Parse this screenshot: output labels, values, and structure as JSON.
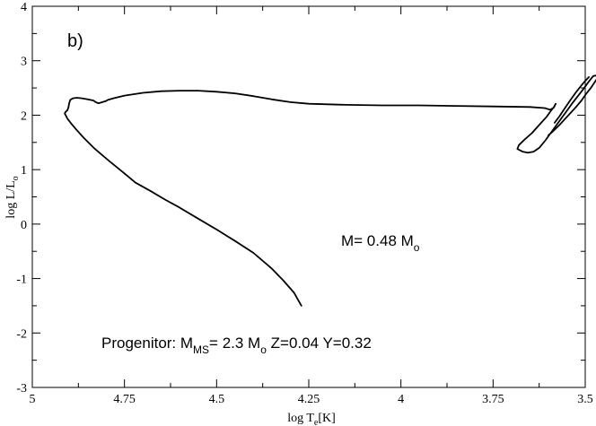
{
  "chart_data": {
    "type": "line",
    "panel_label": "b)",
    "xlabel": {
      "main": "log T",
      "sub": "e",
      "tail": "[K]"
    },
    "ylabel": {
      "main": "log L/L",
      "sub": "o"
    },
    "xlim": [
      5,
      3.5
    ],
    "ylim": [
      -3,
      4
    ],
    "x_ticks": [
      5,
      4.75,
      4.5,
      4.25,
      4,
      3.75,
      3.5
    ],
    "x_tick_labels": [
      "5",
      "4.75",
      "4.5",
      "4.25",
      "4",
      "3.75",
      "3.5"
    ],
    "y_ticks": [
      -3,
      -2,
      -1,
      0,
      1,
      2,
      3,
      4
    ],
    "y_tick_labels": [
      "-3",
      "-2",
      "-1",
      "0",
      "1",
      "2",
      "3",
      "4"
    ],
    "grid": false,
    "annotations": {
      "mass": {
        "main": "M= 0.48 M",
        "sub": "o"
      },
      "progenitor": {
        "part1": "Progenitor: M",
        "sub1": "MS",
        "part2": "= 2.3 M",
        "sub2": "o",
        "part3": " Z=0.04 Y=0.32"
      }
    },
    "series": [
      {
        "values": [
          [
            3.6,
            1.63
          ],
          [
            3.585,
            1.72
          ],
          [
            3.57,
            1.82
          ],
          [
            3.555,
            1.93
          ],
          [
            3.54,
            2.04
          ],
          [
            3.525,
            2.15
          ],
          [
            3.51,
            2.27
          ],
          [
            3.5,
            2.37
          ],
          [
            3.485,
            2.5
          ],
          [
            3.475,
            2.6
          ],
          [
            3.467,
            2.68
          ],
          [
            3.47,
            2.73
          ],
          [
            3.478,
            2.72
          ],
          [
            3.49,
            2.62
          ],
          [
            3.505,
            2.48
          ],
          [
            3.52,
            2.35
          ],
          [
            3.535,
            2.22
          ],
          [
            3.55,
            2.08
          ],
          [
            3.565,
            1.94
          ],
          [
            3.58,
            1.8
          ],
          [
            3.595,
            1.66
          ],
          [
            3.61,
            1.52
          ],
          [
            3.625,
            1.4
          ],
          [
            3.64,
            1.33
          ],
          [
            3.655,
            1.31
          ],
          [
            3.67,
            1.33
          ],
          [
            3.684,
            1.38
          ],
          [
            3.68,
            1.45
          ],
          [
            3.665,
            1.55
          ],
          [
            3.645,
            1.67
          ],
          [
            3.625,
            1.82
          ],
          [
            3.605,
            1.97
          ],
          [
            3.592,
            2.09
          ],
          [
            3.585,
            2.15
          ],
          [
            3.58,
            2.21
          ],
          [
            3.585,
            2.14
          ],
          [
            3.595,
            2.1
          ],
          [
            3.61,
            2.13
          ],
          [
            3.65,
            2.15
          ],
          [
            3.75,
            2.16
          ],
          [
            3.85,
            2.17
          ],
          [
            3.95,
            2.18
          ],
          [
            4.05,
            2.18
          ],
          [
            4.15,
            2.19
          ],
          [
            4.25,
            2.21
          ],
          [
            4.3,
            2.24
          ],
          [
            4.35,
            2.29
          ],
          [
            4.4,
            2.35
          ],
          [
            4.45,
            2.4
          ],
          [
            4.5,
            2.43
          ],
          [
            4.55,
            2.45
          ],
          [
            4.6,
            2.45
          ],
          [
            4.65,
            2.44
          ],
          [
            4.7,
            2.41
          ],
          [
            4.75,
            2.36
          ],
          [
            4.78,
            2.31
          ],
          [
            4.795,
            2.28
          ],
          [
            4.8,
            2.26
          ],
          [
            4.81,
            2.24
          ],
          [
            4.815,
            2.23
          ],
          [
            4.82,
            2.22
          ],
          [
            4.825,
            2.23
          ],
          [
            4.83,
            2.25
          ],
          [
            4.835,
            2.27
          ],
          [
            4.85,
            2.29
          ],
          [
            4.865,
            2.31
          ],
          [
            4.88,
            2.32
          ],
          [
            4.89,
            2.31
          ],
          [
            4.897,
            2.28
          ],
          [
            4.9,
            2.22
          ],
          [
            4.902,
            2.14
          ],
          [
            4.905,
            2.09
          ],
          [
            4.91,
            2.06
          ],
          [
            4.912,
            2.03
          ],
          [
            4.908,
            1.98
          ],
          [
            4.905,
            1.94
          ],
          [
            4.895,
            1.85
          ],
          [
            4.88,
            1.73
          ],
          [
            4.86,
            1.58
          ],
          [
            4.83,
            1.38
          ],
          [
            4.79,
            1.15
          ],
          [
            4.75,
            0.93
          ],
          [
            4.72,
            0.76
          ],
          [
            4.68,
            0.61
          ],
          [
            4.64,
            0.45
          ],
          [
            4.6,
            0.3
          ],
          [
            4.55,
            0.1
          ],
          [
            4.5,
            -0.1
          ],
          [
            4.45,
            -0.31
          ],
          [
            4.4,
            -0.53
          ],
          [
            4.35,
            -0.82
          ],
          [
            4.32,
            -1.03
          ],
          [
            4.29,
            -1.26
          ],
          [
            4.27,
            -1.5
          ]
        ]
      },
      {
        "values": [
          [
            3.583,
            1.86
          ],
          [
            3.57,
            1.98
          ],
          [
            3.555,
            2.13
          ],
          [
            3.54,
            2.28
          ],
          [
            3.525,
            2.42
          ],
          [
            3.51,
            2.55
          ],
          [
            3.5,
            2.63
          ],
          [
            3.49,
            2.7
          ]
        ]
      }
    ]
  }
}
